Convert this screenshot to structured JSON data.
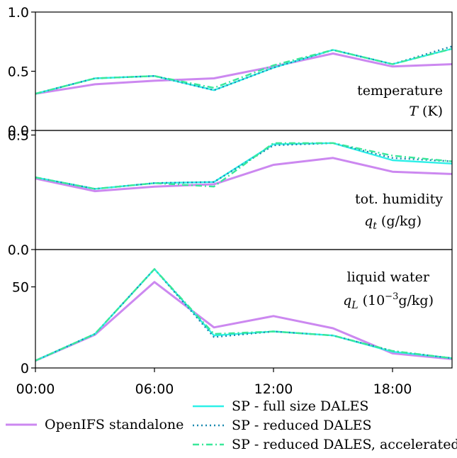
{
  "colors": {
    "openifs": "#cc88f0",
    "sp_full": "#2ef0e8",
    "sp_reduced": "#1a8ab0",
    "sp_accel": "#3ae89a"
  },
  "chart_data": [
    {
      "type": "line",
      "panel": "temperature",
      "annotation": [
        "temperature",
        "T (K)"
      ],
      "x": [
        "00:00",
        "03:00",
        "06:00",
        "09:00",
        "12:00",
        "15:00",
        "18:00",
        "21:00"
      ],
      "xticks": [
        "00:00",
        "06:00",
        "12:00",
        "18:00"
      ],
      "ylim": [
        0.0,
        1.0
      ],
      "yticks": [
        "0.0",
        "0.5",
        "1.0"
      ],
      "series": [
        {
          "name": "OpenIFS standalone",
          "style": "solid",
          "color_key": "openifs",
          "values": [
            0.31,
            0.39,
            0.42,
            0.44,
            0.54,
            0.65,
            0.54,
            0.56
          ]
        },
        {
          "name": "SP - full size DALES",
          "style": "solid",
          "color_key": "sp_full",
          "values": [
            0.31,
            0.44,
            0.46,
            0.34,
            0.53,
            0.68,
            0.56,
            0.69
          ]
        },
        {
          "name": "SP - reduced DALES",
          "style": "dotted",
          "color_key": "sp_reduced",
          "values": [
            0.31,
            0.44,
            0.46,
            0.34,
            0.53,
            0.68,
            0.56,
            0.71
          ]
        },
        {
          "name": "SP - reduced DALES, accelerated",
          "style": "dashdot",
          "color_key": "sp_accel",
          "values": [
            0.31,
            0.44,
            0.46,
            0.36,
            0.55,
            0.68,
            0.56,
            0.69
          ]
        }
      ]
    },
    {
      "type": "line",
      "panel": "humidity",
      "annotation": [
        "tot. humidity",
        "q_t (g/kg)"
      ],
      "x": [
        "00:00",
        "03:00",
        "06:00",
        "09:00",
        "12:00",
        "15:00",
        "18:00",
        "21:00"
      ],
      "xticks": [
        "00:00",
        "06:00",
        "12:00",
        "18:00"
      ],
      "ylim": [
        0.0,
        0.52
      ],
      "yticks": [
        "0.0",
        "0.5"
      ],
      "series": [
        {
          "name": "OpenIFS standalone",
          "style": "solid",
          "color_key": "openifs",
          "values": [
            0.31,
            0.255,
            0.275,
            0.285,
            0.37,
            0.4,
            0.34,
            0.33
          ]
        },
        {
          "name": "SP - full size DALES",
          "style": "solid",
          "color_key": "sp_full",
          "values": [
            0.315,
            0.265,
            0.29,
            0.295,
            0.46,
            0.465,
            0.39,
            0.375
          ]
        },
        {
          "name": "SP - reduced DALES",
          "style": "dotted",
          "color_key": "sp_reduced",
          "values": [
            0.315,
            0.265,
            0.29,
            0.295,
            0.455,
            0.465,
            0.4,
            0.385
          ]
        },
        {
          "name": "SP - reduced DALES, accelerated",
          "style": "dashdot",
          "color_key": "sp_accel",
          "values": [
            0.315,
            0.265,
            0.29,
            0.275,
            0.465,
            0.465,
            0.41,
            0.385
          ]
        }
      ]
    },
    {
      "type": "line",
      "panel": "liquid water",
      "annotation": [
        "liquid water",
        "q_L (10^-3 g/kg)"
      ],
      "x": [
        "00:00",
        "03:00",
        "06:00",
        "09:00",
        "12:00",
        "15:00",
        "18:00",
        "21:00"
      ],
      "xticks": [
        "00:00",
        "06:00",
        "12:00",
        "18:00"
      ],
      "ylim": [
        0,
        73
      ],
      "yticks": [
        "0",
        "50"
      ],
      "series": [
        {
          "name": "OpenIFS standalone",
          "style": "solid",
          "color_key": "openifs",
          "values": [
            4.5,
            20.5,
            53,
            25,
            32,
            24.5,
            9,
            5.5
          ]
        },
        {
          "name": "SP - full size DALES",
          "style": "solid",
          "color_key": "sp_full",
          "values": [
            4.5,
            21,
            61,
            20,
            22.5,
            20,
            10,
            6
          ]
        },
        {
          "name": "SP - reduced DALES",
          "style": "dotted",
          "color_key": "sp_reduced",
          "values": [
            4.5,
            21,
            61,
            19,
            22.5,
            20,
            10.5,
            6
          ]
        },
        {
          "name": "SP - reduced DALES, accelerated",
          "style": "dashdot",
          "color_key": "sp_accel",
          "values": [
            4.5,
            21,
            61,
            21,
            22.5,
            20,
            10.5,
            6
          ]
        }
      ]
    }
  ],
  "legend": [
    {
      "label": "OpenIFS standalone",
      "style": "solid",
      "color_key": "openifs"
    },
    {
      "label": "SP - full size DALES",
      "style": "solid",
      "color_key": "sp_full"
    },
    {
      "label": "SP - reduced DALES",
      "style": "dotted",
      "color_key": "sp_reduced"
    },
    {
      "label": "SP - reduced DALES, accelerated",
      "style": "dashdot",
      "color_key": "sp_accel"
    }
  ]
}
